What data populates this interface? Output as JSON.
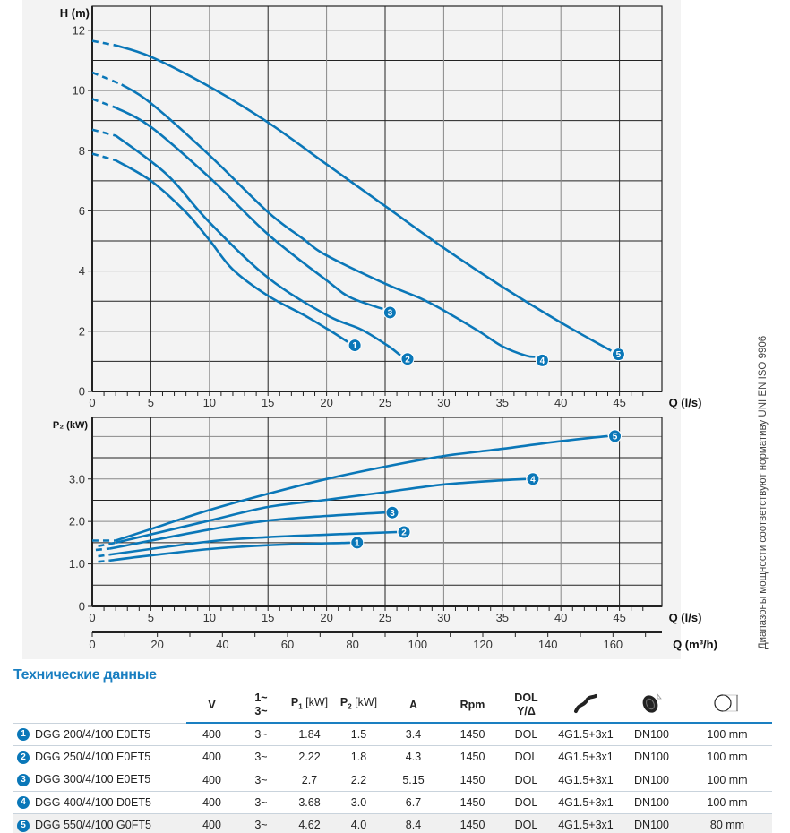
{
  "colors": {
    "curve": "#0a77b8",
    "title": "#1a7fc1",
    "grid": "#222",
    "panel": "#f3f3f3"
  },
  "note": "Диапазоны мощности соответствуют нормативу UNI EN ISO 9906",
  "chart_data": [
    {
      "type": "line",
      "title": "",
      "ylabel": "H (m)",
      "xlabel": "Q (l/s)",
      "xlim": [
        0,
        48.5
      ],
      "ylim": [
        0,
        12.8
      ],
      "xticks": [
        0,
        5,
        10,
        15,
        20,
        25,
        30,
        35,
        40,
        45
      ],
      "yticks": [
        0,
        2,
        4,
        6,
        8,
        10,
        12
      ],
      "grid": true,
      "series": [
        {
          "name": "1",
          "points": [
            [
              0,
              7.9
            ],
            [
              2,
              7.68
            ],
            [
              5,
              7.0
            ],
            [
              8,
              5.95
            ],
            [
              10,
              5.03
            ],
            [
              12,
              4.05
            ],
            [
              15,
              3.18
            ],
            [
              18,
              2.55
            ],
            [
              20,
              2.09
            ],
            [
              21.8,
              1.65
            ]
          ]
        },
        {
          "name": "2",
          "points": [
            [
              0,
              8.7
            ],
            [
              2,
              8.5
            ],
            [
              5,
              7.65
            ],
            [
              7,
              6.96
            ],
            [
              10,
              5.62
            ],
            [
              15,
              3.78
            ],
            [
              20,
              2.54
            ],
            [
              23,
              2.05
            ],
            [
              25.3,
              1.5
            ],
            [
              26.3,
              1.2
            ]
          ]
        },
        {
          "name": "3",
          "points": [
            [
              0,
              9.72
            ],
            [
              2,
              9.43
            ],
            [
              5,
              8.79
            ],
            [
              10,
              7.11
            ],
            [
              15,
              5.22
            ],
            [
              20,
              3.69
            ],
            [
              22,
              3.13
            ],
            [
              24.8,
              2.74
            ]
          ]
        },
        {
          "name": "4",
          "points": [
            [
              0,
              10.6
            ],
            [
              2.5,
              10.2
            ],
            [
              5,
              9.58
            ],
            [
              10,
              7.85
            ],
            [
              15,
              5.96
            ],
            [
              18,
              5.07
            ],
            [
              20,
              4.52
            ],
            [
              25,
              3.58
            ],
            [
              28,
              3.1
            ],
            [
              30,
              2.69
            ],
            [
              33,
              2.0
            ],
            [
              35,
              1.5
            ],
            [
              37,
              1.19
            ],
            [
              37.8,
              1.15
            ]
          ]
        },
        {
          "name": "5",
          "points": [
            [
              0,
              11.65
            ],
            [
              2,
              11.5
            ],
            [
              5,
              11.12
            ],
            [
              10,
              10.13
            ],
            [
              15,
              8.94
            ],
            [
              20,
              7.55
            ],
            [
              25,
              6.16
            ],
            [
              30,
              4.77
            ],
            [
              35,
              3.48
            ],
            [
              40,
              2.29
            ],
            [
              44.3,
              1.35
            ]
          ]
        }
      ]
    },
    {
      "type": "line",
      "title": "",
      "ylabel": "P₂ (kW)",
      "xlabel": "Q (l/s)",
      "xlabel2": "Q (m³/h)",
      "xlim": [
        0,
        48.5
      ],
      "ylim": [
        0,
        4.45
      ],
      "xticks": [
        0,
        5,
        10,
        15,
        20,
        25,
        30,
        35,
        40,
        45
      ],
      "x2ticks": [
        0,
        20,
        40,
        60,
        80,
        100,
        120,
        140,
        160
      ],
      "yticks": [
        "0",
        "1.0",
        "2.0",
        "3.0"
      ],
      "grid": true,
      "series": [
        {
          "name": "1",
          "points": [
            [
              0.5,
              1.05
            ],
            [
              1.5,
              1.08
            ],
            [
              5,
              1.2
            ],
            [
              10,
              1.35
            ],
            [
              15,
              1.44
            ],
            [
              22,
              1.5
            ]
          ]
        },
        {
          "name": "2",
          "points": [
            [
              0.5,
              1.18
            ],
            [
              1.5,
              1.22
            ],
            [
              10,
              1.53
            ],
            [
              15,
              1.63
            ],
            [
              20,
              1.69
            ],
            [
              26,
              1.75
            ]
          ]
        },
        {
          "name": "3",
          "points": [
            [
              0.3,
              1.33
            ],
            [
              1.5,
              1.36
            ],
            [
              10,
              1.81
            ],
            [
              15,
              2.02
            ],
            [
              20,
              2.13
            ],
            [
              25,
              2.21
            ]
          ]
        },
        {
          "name": "4",
          "points": [
            [
              0.5,
              1.42
            ],
            [
              2,
              1.5
            ],
            [
              10,
              2.02
            ],
            [
              15,
              2.34
            ],
            [
              20,
              2.51
            ],
            [
              25,
              2.69
            ],
            [
              30,
              2.87
            ],
            [
              35,
              2.97
            ],
            [
              37,
              3.0
            ]
          ]
        },
        {
          "name": "5",
          "points": [
            [
              0,
              1.55
            ],
            [
              2,
              1.55
            ],
            [
              5,
              1.82
            ],
            [
              10,
              2.27
            ],
            [
              15,
              2.65
            ],
            [
              20,
              3.0
            ],
            [
              25,
              3.29
            ],
            [
              30,
              3.54
            ],
            [
              35,
              3.71
            ],
            [
              40,
              3.89
            ],
            [
              44,
              4.01
            ]
          ]
        }
      ]
    }
  ],
  "table": {
    "title": "Технические данные",
    "headers": {
      "v": "V",
      "phase1": "1~",
      "phase3": "3~",
      "p1": "P",
      "p1_sub": "1",
      "p1_unit": " [kW]",
      "p2": "P",
      "p2_sub": "2",
      "p2_unit": " [kW]",
      "a": "A",
      "rpm": "Rpm",
      "start1": "DOL",
      "start2": "Y/Δ"
    },
    "header_icons": [
      "cable-icon",
      "impeller-outlet-icon",
      "solids-passage-icon"
    ],
    "rows": [
      {
        "n": "1",
        "model": "DGG 200/4/100 E0ET5",
        "v": "400",
        "phase": "3~",
        "p1": "1.84",
        "p2": "1.5",
        "a": "3.4",
        "rpm": "1450",
        "start": "DOL",
        "cable": "4G1.5+3x1",
        "dn": "DN100",
        "passage": "100 mm"
      },
      {
        "n": "2",
        "model": "DGG 250/4/100 E0ET5",
        "v": "400",
        "phase": "3~",
        "p1": "2.22",
        "p2": "1.8",
        "a": "4.3",
        "rpm": "1450",
        "start": "DOL",
        "cable": "4G1.5+3x1",
        "dn": "DN100",
        "passage": "100 mm"
      },
      {
        "n": "3",
        "model": "DGG 300/4/100 E0ET5",
        "v": "400",
        "phase": "3~",
        "p1": "2.7",
        "p2": "2.2",
        "a": "5.15",
        "rpm": "1450",
        "start": "DOL",
        "cable": "4G1.5+3x1",
        "dn": "DN100",
        "passage": "100 mm"
      },
      {
        "n": "4",
        "model": "DGG 400/4/100 D0ET5",
        "v": "400",
        "phase": "3~",
        "p1": "3.68",
        "p2": "3.0",
        "a": "6.7",
        "rpm": "1450",
        "start": "DOL",
        "cable": "4G1.5+3x1",
        "dn": "DN100",
        "passage": "100 mm"
      },
      {
        "n": "5",
        "model": "DGG 550/4/100 G0FT5",
        "v": "400",
        "phase": "3~",
        "p1": "4.62",
        "p2": "4.0",
        "a": "8.4",
        "rpm": "1450",
        "start": "DOL",
        "cable": "4G1.5+3x1",
        "dn": "DN100",
        "passage": "80 mm"
      }
    ]
  }
}
